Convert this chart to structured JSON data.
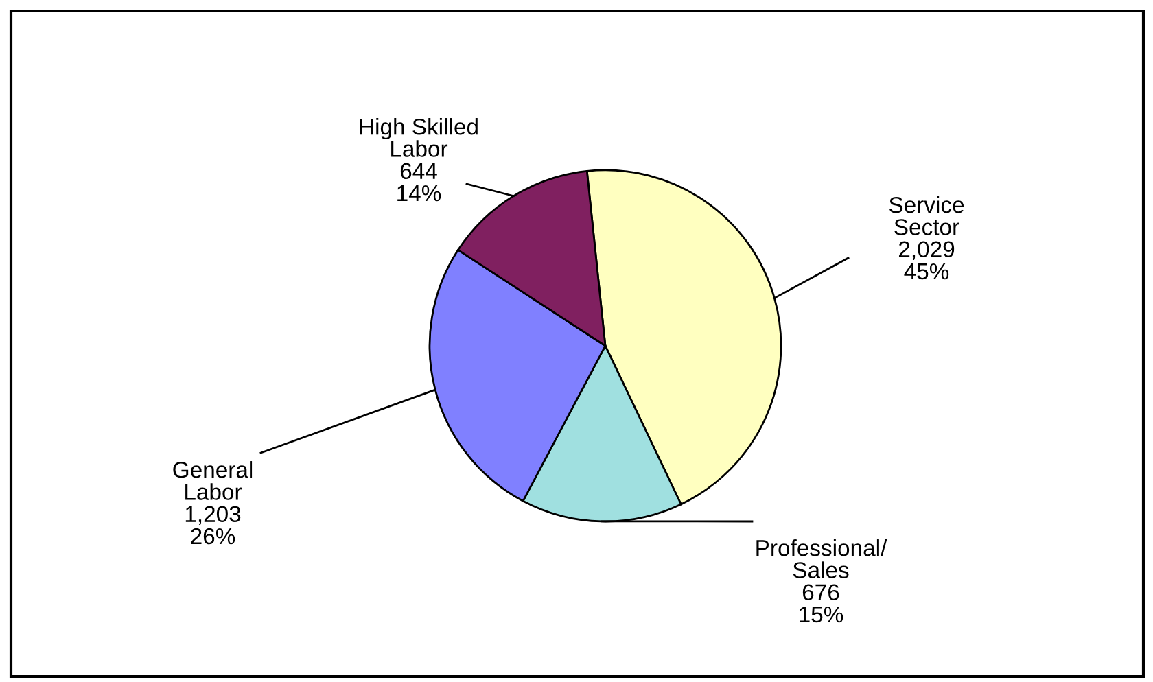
{
  "chart_data": {
    "type": "pie",
    "categories": [
      "Service\nSector",
      "Professional/\nSales",
      "General\nLabor",
      "High Skilled\nLabor"
    ],
    "values": [
      2029,
      676,
      1203,
      644
    ],
    "value_labels": [
      "2,029\n45%",
      "676\n15%",
      "1,203\n26%",
      "644\n14%"
    ],
    "colors": [
      "#ffffc0",
      "#a0e0e0",
      "#8080ff",
      "#802060"
    ]
  }
}
